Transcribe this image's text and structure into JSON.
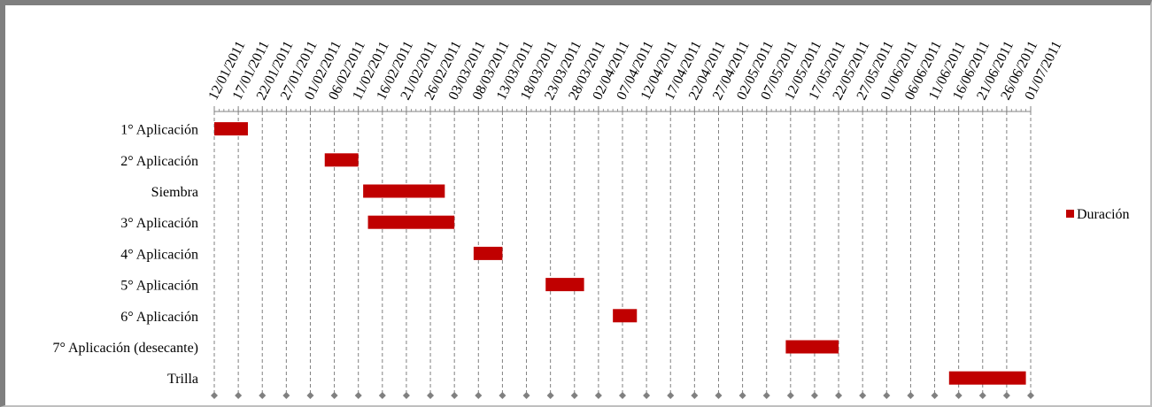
{
  "chart_data": {
    "type": "bar",
    "orientation": "horizontal",
    "stacked_gantt": true,
    "categories": [
      "1° Aplicación",
      "2° Aplicación",
      "Siembra",
      "3° Aplicación",
      "4° Aplicación",
      "5° Aplicación",
      "6° Aplicación",
      "7° Aplicación (desecante)",
      "Trilla"
    ],
    "series": [
      {
        "name": "Duración",
        "color": "#c00000",
        "tasks": [
          {
            "start": "2011-01-12",
            "end": "2011-01-19"
          },
          {
            "start": "2011-02-04",
            "end": "2011-02-11"
          },
          {
            "start": "2011-02-12",
            "end": "2011-03-01"
          },
          {
            "start": "2011-02-13",
            "end": "2011-03-03"
          },
          {
            "start": "2011-03-07",
            "end": "2011-03-13"
          },
          {
            "start": "2011-03-22",
            "end": "2011-03-30"
          },
          {
            "start": "2011-04-05",
            "end": "2011-04-10"
          },
          {
            "start": "2011-05-11",
            "end": "2011-05-22"
          },
          {
            "start": "2011-06-14",
            "end": "2011-06-30"
          }
        ]
      }
    ],
    "x_tick_labels": [
      "12/01/2011",
      "17/01/2011",
      "22/01/2011",
      "27/01/2011",
      "01/02/2011",
      "06/02/2011",
      "11/02/2011",
      "16/02/2011",
      "21/02/2011",
      "26/02/2011",
      "03/03/2011",
      "08/03/2011",
      "13/03/2011",
      "18/03/2011",
      "23/03/2011",
      "28/03/2011",
      "02/04/2011",
      "07/04/2011",
      "12/04/2011",
      "17/04/2011",
      "22/04/2011",
      "27/04/2011",
      "02/05/2011",
      "07/05/2011",
      "12/05/2011",
      "17/05/2011",
      "22/05/2011",
      "27/05/2011",
      "01/06/2011",
      "06/06/2011",
      "11/06/2011",
      "16/06/2011",
      "21/06/2011",
      "26/06/2011",
      "01/07/2011"
    ],
    "xlim": [
      "2011-01-12",
      "2011-07-01"
    ],
    "x_axis_position": "top",
    "grid": {
      "vertical": true,
      "style": "dashed",
      "color": "#808080"
    },
    "legend": {
      "position": "right",
      "entries": [
        "Duración"
      ]
    }
  }
}
